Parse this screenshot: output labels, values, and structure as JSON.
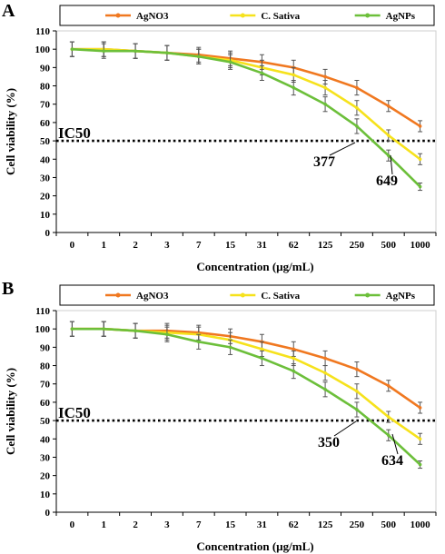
{
  "colors": {
    "AgNO3": "#f07820",
    "C. Sativa": "#f6e21c",
    "AgNPs": "#6cbf3a",
    "axis": "#000000",
    "grid": "#ffffff",
    "error_bar": "#555555"
  },
  "chart_data": [
    {
      "type": "line",
      "panel_label": "A",
      "title": "",
      "xlabel": "Concentration (µg/mL)",
      "ylabel": "Cell viability (%)",
      "categories": [
        "0",
        "1",
        "2",
        "3",
        "7",
        "15",
        "31",
        "62",
        "125",
        "250",
        "500",
        "1000"
      ],
      "ylim": [
        0,
        110
      ],
      "yticks": [
        0,
        10,
        20,
        30,
        40,
        50,
        60,
        70,
        80,
        90,
        100,
        110
      ],
      "grid": false,
      "legend_position": "top",
      "series": [
        {
          "name": "AgNO3",
          "values": [
            100,
            100,
            99,
            98,
            97,
            95,
            93,
            90,
            85,
            79,
            69,
            58
          ],
          "errors": [
            4,
            4,
            4,
            4,
            4,
            4,
            4,
            4,
            4,
            4,
            3,
            3
          ]
        },
        {
          "name": "C. Sativa",
          "values": [
            100,
            100,
            99,
            98,
            96,
            94,
            90,
            86,
            79,
            68,
            53,
            40
          ],
          "errors": [
            4,
            4,
            4,
            4,
            4,
            4,
            4,
            4,
            4,
            4,
            3,
            3
          ]
        },
        {
          "name": "AgNPs",
          "values": [
            100,
            99,
            99,
            98,
            96,
            93,
            87,
            79,
            70,
            58,
            42,
            25
          ],
          "errors": [
            4,
            4,
            4,
            4,
            4,
            4,
            4,
            4,
            4,
            4,
            3,
            2
          ]
        }
      ],
      "reference_line": {
        "label": "IC50",
        "y": 50
      },
      "annotations": [
        {
          "text": "377",
          "series": "AgNPs"
        },
        {
          "text": "649",
          "series": "C. Sativa"
        }
      ]
    },
    {
      "type": "line",
      "panel_label": "B",
      "title": "",
      "xlabel": "Concentration (µg/mL)",
      "ylabel": "Cell viability (%)",
      "categories": [
        "0",
        "1",
        "2",
        "3",
        "7",
        "15",
        "31",
        "62",
        "125",
        "250",
        "500",
        "1000"
      ],
      "ylim": [
        0,
        110
      ],
      "yticks": [
        0,
        10,
        20,
        30,
        40,
        50,
        60,
        70,
        80,
        90,
        100,
        110
      ],
      "grid": false,
      "legend_position": "top",
      "series": [
        {
          "name": "AgNO3",
          "values": [
            100,
            100,
            99,
            99,
            98,
            96,
            93,
            89,
            84,
            78,
            69,
            57
          ],
          "errors": [
            4,
            4,
            4,
            4,
            4,
            4,
            4,
            4,
            4,
            4,
            3,
            3
          ]
        },
        {
          "name": "C. Sativa",
          "values": [
            100,
            100,
            99,
            98,
            97,
            94,
            89,
            84,
            76,
            66,
            52,
            40
          ],
          "errors": [
            4,
            4,
            4,
            4,
            4,
            4,
            4,
            4,
            4,
            4,
            3,
            3
          ]
        },
        {
          "name": "AgNPs",
          "values": [
            100,
            100,
            99,
            97,
            93,
            90,
            84,
            77,
            67,
            56,
            42,
            26
          ],
          "errors": [
            4,
            4,
            4,
            4,
            4,
            4,
            4,
            4,
            4,
            4,
            3,
            2
          ]
        }
      ],
      "reference_line": {
        "label": "IC50",
        "y": 50
      },
      "annotations": [
        {
          "text": "350",
          "series": "AgNPs"
        },
        {
          "text": "634",
          "series": "C. Sativa"
        }
      ]
    }
  ]
}
